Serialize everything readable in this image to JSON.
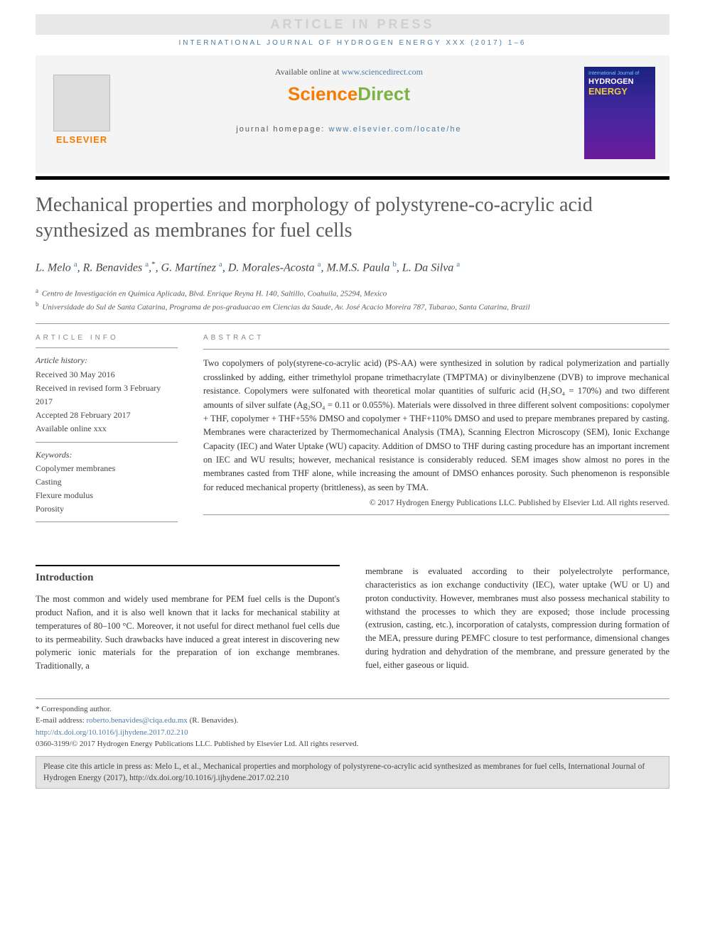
{
  "banner": {
    "text": "ARTICLE IN PRESS"
  },
  "journal_ref": "INTERNATIONAL JOURNAL OF HYDROGEN ENERGY XXX (2017) 1–6",
  "header": {
    "available_prefix": "Available online at ",
    "available_link": "www.sciencedirect.com",
    "sciencedirect_1": "Science",
    "sciencedirect_2": "Direct",
    "homepage_prefix": "journal homepage: ",
    "homepage_link": "www.elsevier.com/locate/he",
    "elsevier": "ELSEVIER",
    "cover": {
      "line1": "International Journal of",
      "line2": "HYDROGEN",
      "line3": "ENERGY"
    }
  },
  "title": "Mechanical properties and morphology of polystyrene-co-acrylic acid synthesized as membranes for fuel cells",
  "authors_html": "L. Melo <sup class='aff'>a</sup>, R. Benavides <sup class='aff'>a</sup>,<sup>*</sup>, G. Martínez <sup class='aff'>a</sup>, D. Morales-Acosta <sup class='aff'>a</sup>, M.M.S. Paula <sup class='aff'>b</sup>, L. Da Silva <sup class='aff'>a</sup>",
  "affiliations": {
    "a": "Centro de Investigación en Química Aplicada, Blvd. Enrique Reyna H. 140, Saltillo, Coahuila, 25294, Mexico",
    "b": "Universidade do Sul de Santa Catarina, Programa de pos-graduacao em Ciencias da Saude, Av. José Acacio Moreira 787, Tubarao, Santa Catarina, Brazil"
  },
  "info": {
    "label": "ARTICLE INFO",
    "history_label": "Article history:",
    "received": "Received 30 May 2016",
    "revised": "Received in revised form 3 February 2017",
    "accepted": "Accepted 28 February 2017",
    "online": "Available online xxx",
    "keywords_label": "Keywords:",
    "keywords": [
      "Copolymer membranes",
      "Casting",
      "Flexure modulus",
      "Porosity"
    ]
  },
  "abstract": {
    "label": "ABSTRACT",
    "text": "Two copolymers of poly(styrene-co-acrylic acid) (PS-AA) were synthesized in solution by radical polymerization and partially crosslinked by adding, either trimethylol propane trimethacrylate (TMPTMA) or divinylbenzene (DVB) to improve mechanical resistance. Copolymers were sulfonated with theoretical molar quantities of sulfuric acid (H₂SO₄ = 170%) and two different amounts of silver sulfate (Ag₂SO₄ = 0.11 or 0.055%). Materials were dissolved in three different solvent compositions: copolymer + THF, copolymer + THF+55% DMSO and copolymer + THF+110% DMSO and used to prepare membranes prepared by casting. Membranes were characterized by Thermomechanical Analysis (TMA), Scanning Electron Microscopy (SEM), Ionic Exchange Capacity (IEC) and Water Uptake (WU) capacity. Addition of DMSO to THF during casting procedure has an important increment on IEC and WU results; however, mechanical resistance is considerably reduced. SEM images show almost no pores in the membranes casted from THF alone, while increasing the amount of DMSO enhances porosity. Such phenomenon is responsible for reduced mechanical property (brittleness), as seen by TMA.",
    "copyright": "© 2017 Hydrogen Energy Publications LLC. Published by Elsevier Ltd. All rights reserved."
  },
  "intro": {
    "heading": "Introduction",
    "col1": "The most common and widely used membrane for PEM fuel cells is the Dupont's product Nafion, and it is also well known that it lacks for mechanical stability at temperatures of 80–100 °C. Moreover, it not useful for direct methanol fuel cells due to its permeability. Such drawbacks have induced a great interest in discovering new polymeric ionic materials for the preparation of ion exchange membranes. Traditionally, a",
    "col2": "membrane is evaluated according to their polyelectrolyte performance, characteristics as ion exchange conductivity (IEC), water uptake (WU or U) and proton conductivity. However, membranes must also possess mechanical stability to withstand the processes to which they are exposed; those include processing (extrusion, casting, etc.), incorporation of catalysts, compression during formation of the MEA, pressure during PEMFC closure to test performance, dimensional changes during hydration and dehydration of the membrane, and pressure generated by the fuel, either gaseous or liquid."
  },
  "footnotes": {
    "corresponding": "* Corresponding author.",
    "email_label": "E-mail address: ",
    "email": "roberto.benavides@ciqa.edu.mx",
    "email_suffix": " (R. Benavides).",
    "doi": "http://dx.doi.org/10.1016/j.ijhydene.2017.02.210",
    "copyright": "0360-3199/© 2017 Hydrogen Energy Publications LLC. Published by Elsevier Ltd. All rights reserved."
  },
  "cite_box": "Please cite this article in press as: Melo L, et al., Mechanical properties and morphology of polystyrene-co-acrylic acid synthesized as membranes for fuel cells, International Journal of Hydrogen Energy (2017), http://dx.doi.org/10.1016/j.ijhydene.2017.02.210"
}
